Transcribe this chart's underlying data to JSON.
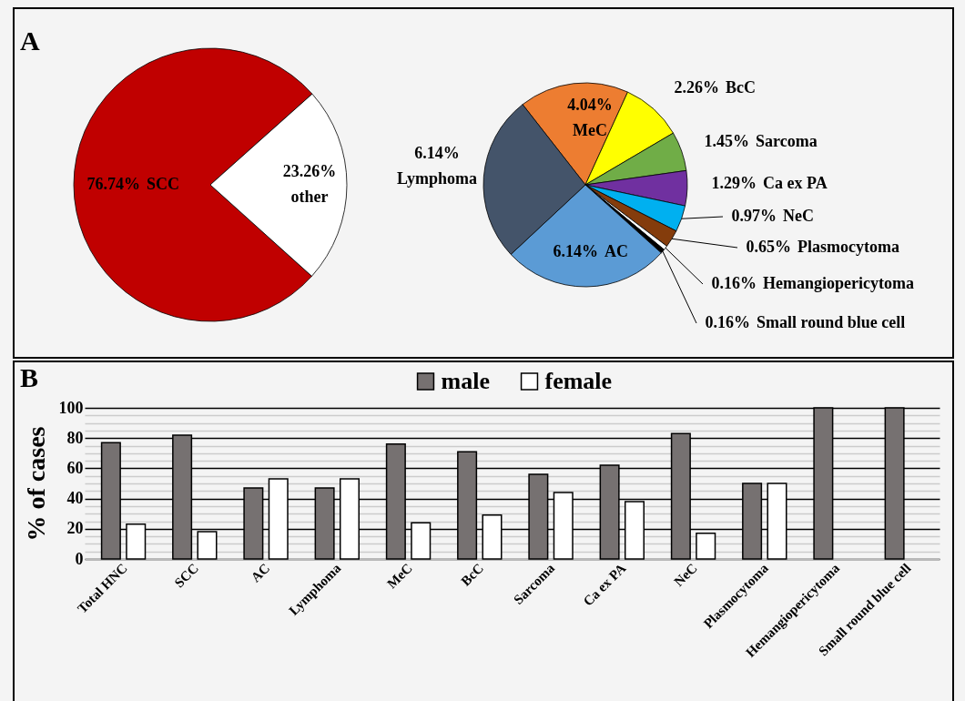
{
  "chart_data": [
    {
      "type": "pie",
      "categories": [
        "SCC",
        "other"
      ],
      "values": [
        76.74,
        23.26
      ],
      "colors": [
        "#c00000",
        "#ffffff"
      ],
      "value_labels": [
        "76.74%",
        "23.26%"
      ],
      "annotations": [
        "A"
      ]
    },
    {
      "type": "pie",
      "categories": [
        "MeC",
        "BcC",
        "Sarcoma",
        "Ca ex PA",
        "NeC",
        "Plasmocytoma",
        "Hemangiopericytoma",
        "Small round blue cell",
        "AC",
        "Lymphoma"
      ],
      "values": [
        4.04,
        2.26,
        1.45,
        1.29,
        0.97,
        0.65,
        0.16,
        0.16,
        6.14,
        6.14
      ],
      "colors": [
        "#ed7d31",
        "#ffff00",
        "#70ad47",
        "#7030a0",
        "#00b0f0",
        "#843c0c",
        "#ffffff",
        "#000000",
        "#5b9bd5",
        "#44546a"
      ],
      "value_labels": [
        "4.04%",
        "2.26%",
        "1.45%",
        "1.29%",
        "0.97%",
        "0.65%",
        "0.16%",
        "0.16%",
        "6.14%",
        "6.14%"
      ]
    },
    {
      "type": "bar",
      "categories": [
        "Total HNC",
        "SCC",
        "AC",
        "Lymphoma",
        "MeC",
        "BcC",
        "Sarcoma",
        "Ca ex PA",
        "NeC",
        "Plasmocytoma",
        "Hemangiopericytoma",
        "Small round blue cell"
      ],
      "series": [
        {
          "name": "male",
          "color": "#767171",
          "values": [
            77,
            82,
            47,
            47,
            76,
            71,
            56,
            62,
            83,
            50,
            100,
            100
          ]
        },
        {
          "name": "female",
          "color": "#ffffff",
          "values": [
            23,
            18,
            53,
            53,
            24,
            29,
            44,
            38,
            17,
            50,
            0,
            0
          ]
        }
      ],
      "ylabel": "% of cases",
      "ylim": [
        0,
        100
      ],
      "yticks": [
        0,
        {
          "value": 5,
          "label": null
        },
        {
          "value": 10,
          "label": null
        },
        {
          "value": 15,
          "label": null
        },
        20,
        {
          "value": 25,
          "label": null
        },
        {
          "value": 30,
          "label": null
        },
        {
          "value": 35,
          "label": null
        },
        40,
        {
          "value": 45,
          "label": null
        },
        {
          "value": 50,
          "label": null
        },
        {
          "value": 55,
          "label": null
        },
        60,
        {
          "value": 65,
          "label": null
        },
        {
          "value": 70,
          "label": null
        },
        {
          "value": 75,
          "label": null
        },
        80,
        {
          "value": 85,
          "label": null
        },
        {
          "value": 90,
          "label": null
        },
        {
          "value": 95,
          "label": null
        },
        100
      ],
      "grid": "y",
      "legend": "top",
      "annotations": [
        "B"
      ]
    }
  ]
}
